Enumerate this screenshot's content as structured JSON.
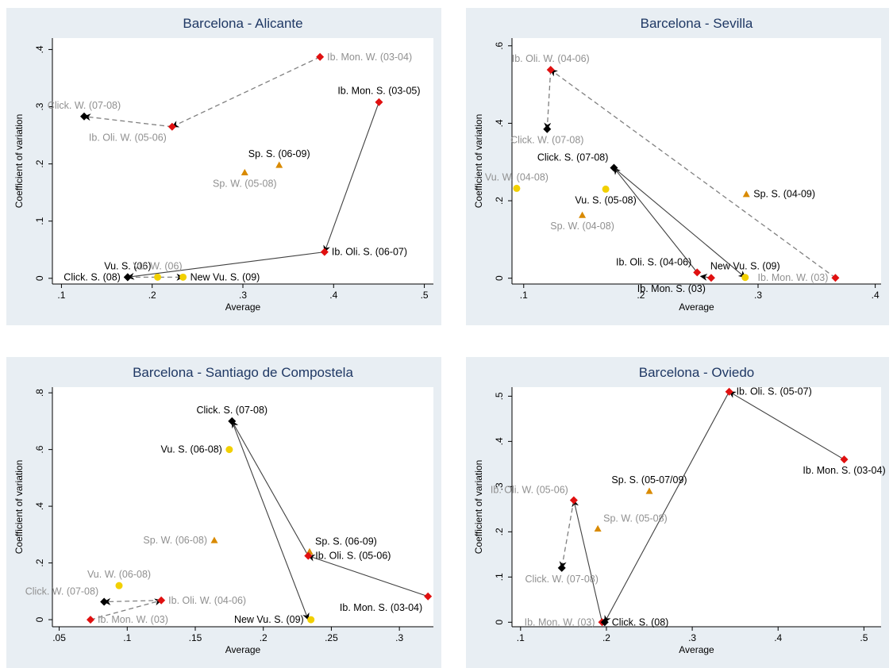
{
  "colors": {
    "background": "#e8eef3",
    "title": "#1f3864",
    "red": "#e01010",
    "black": "#000000",
    "yellow": "#f2d000",
    "orange": "#d98a00",
    "gray_label": "#909090",
    "line_solid": "#404040",
    "line_dashed": "#808080"
  },
  "chart_data": [
    {
      "type": "scatter",
      "title": "Barcelona - Alicante",
      "xlabel": "Average",
      "ylabel": "Coefficient of variation",
      "xlim": [
        0.09,
        0.51
      ],
      "ylim": [
        -0.01,
        0.42
      ],
      "xticks": [
        0.1,
        0.2,
        0.3,
        0.4,
        0.5
      ],
      "xtick_labels": [
        ".1",
        ".2",
        ".3",
        ".4",
        ".5"
      ],
      "yticks": [
        0,
        0.1,
        0.2,
        0.3,
        0.4
      ],
      "ytick_labels": [
        "0",
        ".1",
        ".2",
        ".3",
        ".4"
      ],
      "points": [
        {
          "label": "Ib. Mon. W. (03-04)",
          "x": 0.385,
          "y": 0.387,
          "marker": "diamond",
          "color": "red",
          "label_color": "gray",
          "label_pos": "right"
        },
        {
          "label": "Ib. Oli. W. (05-06)",
          "x": 0.222,
          "y": 0.265,
          "marker": "diamond",
          "color": "red",
          "label_color": "gray",
          "label_pos": "below-left"
        },
        {
          "label": "Click. W. (07-08)",
          "x": 0.125,
          "y": 0.283,
          "marker": "diamond",
          "color": "black",
          "label_color": "gray",
          "label_pos": "above"
        },
        {
          "label": "Ib. Mon. S. (03-05)",
          "x": 0.45,
          "y": 0.308,
          "marker": "diamond",
          "color": "red",
          "label_color": "black",
          "label_pos": "above"
        },
        {
          "label": "Ib. Oli. S. (06-07)",
          "x": 0.39,
          "y": 0.046,
          "marker": "diamond",
          "color": "red",
          "label_color": "black",
          "label_pos": "right"
        },
        {
          "label": "Vu. S. (06)",
          "x": 0.173,
          "y": 0.002,
          "marker": "diamond",
          "color": "black",
          "label_color": "black",
          "label_pos": "above"
        },
        {
          "label": "Click. S. (08)",
          "x": 0.173,
          "y": 0.002,
          "marker": "diamond",
          "color": "black",
          "label_color": "black",
          "label_pos": "left"
        },
        {
          "label": "Vu. W. (06)",
          "x": 0.206,
          "y": 0.002,
          "marker": "circle",
          "color": "yellow",
          "label_color": "gray",
          "label_pos": "above"
        },
        {
          "label": "New Vu. S. (09)",
          "x": 0.234,
          "y": 0.002,
          "marker": "circle",
          "color": "yellow",
          "label_color": "black",
          "label_pos": "right"
        },
        {
          "label": "Sp. S. (06-09)",
          "x": 0.34,
          "y": 0.198,
          "marker": "triangle",
          "color": "orange",
          "label_color": "black",
          "label_pos": "above"
        },
        {
          "label": "Sp. W. (05-08)",
          "x": 0.302,
          "y": 0.185,
          "marker": "triangle",
          "color": "orange",
          "label_color": "gray",
          "label_pos": "below"
        }
      ],
      "arrows": [
        {
          "from": [
            0.385,
            0.387
          ],
          "to": [
            0.222,
            0.265
          ],
          "style": "dashed"
        },
        {
          "from": [
            0.222,
            0.265
          ],
          "to": [
            0.125,
            0.283
          ],
          "style": "dashed"
        },
        {
          "from": [
            0.45,
            0.308
          ],
          "to": [
            0.39,
            0.046
          ],
          "style": "solid"
        },
        {
          "from": [
            0.39,
            0.046
          ],
          "to": [
            0.173,
            0.002
          ],
          "style": "solid"
        },
        {
          "from": [
            0.173,
            0.002
          ],
          "to": [
            0.234,
            0.002
          ],
          "style": "dashed"
        }
      ]
    },
    {
      "type": "scatter",
      "title": "Barcelona - Sevilla",
      "xlabel": "Average",
      "ylabel": "Coefficient of variation",
      "xlim": [
        0.09,
        0.405
      ],
      "ylim": [
        -0.015,
        0.62
      ],
      "xticks": [
        0.1,
        0.2,
        0.3,
        0.4
      ],
      "xtick_labels": [
        ".1",
        ".2",
        ".3",
        ".4"
      ],
      "yticks": [
        0,
        0.2,
        0.4,
        0.6
      ],
      "ytick_labels": [
        "0",
        ".2",
        ".4",
        ".6"
      ],
      "points": [
        {
          "label": "Ib. Oli. W. (04-06)",
          "x": 0.123,
          "y": 0.538,
          "marker": "diamond",
          "color": "red",
          "label_color": "gray",
          "label_pos": "above"
        },
        {
          "label": "Click. W. (07-08)",
          "x": 0.12,
          "y": 0.385,
          "marker": "diamond",
          "color": "black",
          "label_color": "gray",
          "label_pos": "below"
        },
        {
          "label": "Click. S. (07-08)",
          "x": 0.177,
          "y": 0.285,
          "marker": "diamond",
          "color": "black",
          "label_color": "black",
          "label_pos": "above-left"
        },
        {
          "label": "Vu. W. (04-08)",
          "x": 0.094,
          "y": 0.232,
          "marker": "circle",
          "color": "yellow",
          "label_color": "gray",
          "label_pos": "above"
        },
        {
          "label": "Vu. S. (05-08)",
          "x": 0.17,
          "y": 0.23,
          "marker": "circle",
          "color": "yellow",
          "label_color": "black",
          "label_pos": "below"
        },
        {
          "label": "Sp. W. (04-08)",
          "x": 0.15,
          "y": 0.163,
          "marker": "triangle",
          "color": "orange",
          "label_color": "gray",
          "label_pos": "below"
        },
        {
          "label": "Sp. S. (04-09)",
          "x": 0.29,
          "y": 0.217,
          "marker": "triangle",
          "color": "orange",
          "label_color": "black",
          "label_pos": "right"
        },
        {
          "label": "Ib. Oli. S. (04-06)",
          "x": 0.248,
          "y": 0.015,
          "marker": "diamond",
          "color": "red",
          "label_color": "black",
          "label_pos": "above-left"
        },
        {
          "label": "Ib. Mon. S. (03)",
          "x": 0.26,
          "y": 0.001,
          "marker": "diamond",
          "color": "red",
          "label_color": "black",
          "label_pos": "below-left"
        },
        {
          "label": "New Vu. S. (09)",
          "x": 0.289,
          "y": 0.002,
          "marker": "circle",
          "color": "yellow",
          "label_color": "black",
          "label_pos": "above"
        },
        {
          "label": "Ib. Mon. W. (03)",
          "x": 0.366,
          "y": 0.001,
          "marker": "diamond",
          "color": "red",
          "label_color": "gray",
          "label_pos": "left"
        }
      ],
      "arrows": [
        {
          "from": [
            0.366,
            0.001
          ],
          "to": [
            0.123,
            0.538
          ],
          "style": "dashed"
        },
        {
          "from": [
            0.123,
            0.538
          ],
          "to": [
            0.12,
            0.385
          ],
          "style": "dashed"
        },
        {
          "from": [
            0.248,
            0.015
          ],
          "to": [
            0.177,
            0.285
          ],
          "style": "solid"
        },
        {
          "from": [
            0.177,
            0.285
          ],
          "to": [
            0.289,
            0.002
          ],
          "style": "solid"
        },
        {
          "from": [
            0.26,
            0.001
          ],
          "to": [
            0.251,
            0.005
          ],
          "style": "solid"
        }
      ]
    },
    {
      "type": "scatter",
      "title": "Barcelona - Santiago de Compostela",
      "xlabel": "Average",
      "ylabel": "Coefficient of variation",
      "xlim": [
        0.045,
        0.325
      ],
      "ylim": [
        -0.025,
        0.82
      ],
      "xticks": [
        0.05,
        0.1,
        0.15,
        0.2,
        0.25,
        0.3
      ],
      "xtick_labels": [
        ".05",
        ".1",
        ".15",
        ".2",
        ".25",
        ".3"
      ],
      "yticks": [
        0,
        0.2,
        0.4,
        0.6,
        0.8
      ],
      "ytick_labels": [
        "0",
        ".2",
        ".4",
        ".6",
        ".8"
      ],
      "points": [
        {
          "label": "Click. S. (07-08)",
          "x": 0.177,
          "y": 0.7,
          "marker": "diamond",
          "color": "black",
          "label_color": "black",
          "label_pos": "above"
        },
        {
          "label": "Vu. S. (06-08)",
          "x": 0.175,
          "y": 0.6,
          "marker": "circle",
          "color": "yellow",
          "label_color": "black",
          "label_pos": "left"
        },
        {
          "label": "Sp. W. (06-08)",
          "x": 0.164,
          "y": 0.28,
          "marker": "triangle",
          "color": "orange",
          "label_color": "gray",
          "label_pos": "left"
        },
        {
          "label": "Sp. S. (06-09)",
          "x": 0.234,
          "y": 0.24,
          "marker": "triangle",
          "color": "orange",
          "label_color": "black",
          "label_pos": "above-right"
        },
        {
          "label": "Ib. Oli. S. (05-06)",
          "x": 0.233,
          "y": 0.225,
          "marker": "diamond",
          "color": "red",
          "label_color": "black",
          "label_pos": "right"
        },
        {
          "label": "Ib. Mon. S. (03-04)",
          "x": 0.321,
          "y": 0.082,
          "marker": "diamond",
          "color": "red",
          "label_color": "black",
          "label_pos": "below-left"
        },
        {
          "label": "Vu. W. (06-08)",
          "x": 0.094,
          "y": 0.12,
          "marker": "circle",
          "color": "yellow",
          "label_color": "gray",
          "label_pos": "above"
        },
        {
          "label": "Click. W. (07-08)",
          "x": 0.083,
          "y": 0.063,
          "marker": "diamond",
          "color": "black",
          "label_color": "gray",
          "label_pos": "above-left"
        },
        {
          "label": "Ib. Oli. W. (04-06)",
          "x": 0.125,
          "y": 0.068,
          "marker": "diamond",
          "color": "red",
          "label_color": "gray",
          "label_pos": "right"
        },
        {
          "label": "Ib. Mon. W. (03)",
          "x": 0.073,
          "y": 0.0,
          "marker": "diamond",
          "color": "red",
          "label_color": "gray",
          "label_pos": "right"
        },
        {
          "label": "New Vu. S. (09)",
          "x": 0.235,
          "y": 0.0,
          "marker": "circle",
          "color": "yellow",
          "label_color": "black",
          "label_pos": "left"
        }
      ],
      "arrows": [
        {
          "from": [
            0.321,
            0.082
          ],
          "to": [
            0.233,
            0.225
          ],
          "style": "solid"
        },
        {
          "from": [
            0.233,
            0.225
          ],
          "to": [
            0.177,
            0.7
          ],
          "style": "solid"
        },
        {
          "from": [
            0.177,
            0.7
          ],
          "to": [
            0.233,
            0.0
          ],
          "style": "solid"
        },
        {
          "from": [
            0.073,
            0.0
          ],
          "to": [
            0.125,
            0.068
          ],
          "style": "dashed"
        },
        {
          "from": [
            0.125,
            0.068
          ],
          "to": [
            0.083,
            0.063
          ],
          "style": "dashed"
        }
      ]
    },
    {
      "type": "scatter",
      "title": "Barcelona - Oviedo",
      "xlabel": "Average",
      "ylabel": "Coefficient of variation",
      "xlim": [
        0.09,
        0.52
      ],
      "ylim": [
        -0.01,
        0.52
      ],
      "xticks": [
        0.1,
        0.2,
        0.3,
        0.4,
        0.5
      ],
      "xtick_labels": [
        ".1",
        ".2",
        ".3",
        ".4",
        ".5"
      ],
      "yticks": [
        0,
        0.1,
        0.2,
        0.3,
        0.4,
        0.5
      ],
      "ytick_labels": [
        "0",
        ".1",
        ".2",
        ".3",
        ".4",
        ".5"
      ],
      "points": [
        {
          "label": "Ib. Oli. S. (05-07)",
          "x": 0.343,
          "y": 0.51,
          "marker": "diamond",
          "color": "red",
          "label_color": "black",
          "label_pos": "right"
        },
        {
          "label": "Ib. Mon. S. (03-04)",
          "x": 0.477,
          "y": 0.36,
          "marker": "diamond",
          "color": "red",
          "label_color": "black",
          "label_pos": "below"
        },
        {
          "label": "Sp. S. (05-07/09)",
          "x": 0.25,
          "y": 0.29,
          "marker": "triangle",
          "color": "orange",
          "label_color": "black",
          "label_pos": "above"
        },
        {
          "label": "Sp. W. (05-08)",
          "x": 0.19,
          "y": 0.207,
          "marker": "triangle",
          "color": "orange",
          "label_color": "gray",
          "label_pos": "above-right"
        },
        {
          "label": "Ib. Oli. W. (05-06)",
          "x": 0.162,
          "y": 0.27,
          "marker": "diamond",
          "color": "red",
          "label_color": "gray",
          "label_pos": "above-left"
        },
        {
          "label": "Click. W. (07-08)",
          "x": 0.148,
          "y": 0.12,
          "marker": "diamond",
          "color": "black",
          "label_color": "gray",
          "label_pos": "below"
        },
        {
          "label": "Ib. Mon. W. (03)",
          "x": 0.195,
          "y": 0.0,
          "marker": "diamond",
          "color": "red",
          "label_color": "gray",
          "label_pos": "left"
        },
        {
          "label": "Click. S. (08)",
          "x": 0.198,
          "y": 0.0,
          "marker": "diamond",
          "color": "black",
          "label_color": "black",
          "label_pos": "right"
        }
      ],
      "arrows": [
        {
          "from": [
            0.195,
            0.0
          ],
          "to": [
            0.162,
            0.27
          ],
          "style": "solid"
        },
        {
          "from": [
            0.162,
            0.27
          ],
          "to": [
            0.148,
            0.12
          ],
          "style": "dashed"
        },
        {
          "from": [
            0.477,
            0.36
          ],
          "to": [
            0.343,
            0.51
          ],
          "style": "solid"
        },
        {
          "from": [
            0.343,
            0.51
          ],
          "to": [
            0.198,
            0.0
          ],
          "style": "solid"
        }
      ]
    }
  ]
}
